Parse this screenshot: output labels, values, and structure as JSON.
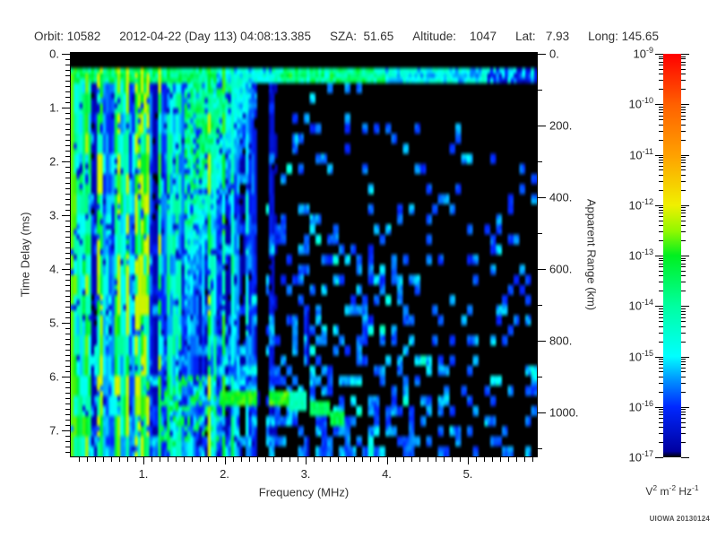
{
  "header": {
    "segments": [
      "Orbit: 10582",
      "2012-04-22 (Day 113) 04:08:13.385",
      "SZA:  51.65",
      "Altitude:    1047",
      "Lat:   7.93",
      "Long: 145.65"
    ],
    "fields": {
      "orbit": "10582",
      "date": "2012-04-22",
      "day": "113",
      "time": "04:08:13.385",
      "sza": "51.65",
      "altitude": "1047",
      "lat": "7.93",
      "long": "145.65"
    }
  },
  "chart_data": {
    "type": "heatmap",
    "subtype": "radar-sounder-ionogram-spectrogram",
    "title": "Orbit: 10582  2012-04-22 (Day 113) 04:08:13.385  SZA: 51.65  Altitude: 1047  Lat: 7.93  Long: 145.65",
    "x_axis": {
      "label": "Frequency (MHz)",
      "lim": [
        0.1,
        5.86
      ],
      "ticks": [
        {
          "v": 1,
          "label": "1."
        },
        {
          "v": 2,
          "label": "2."
        },
        {
          "v": 3,
          "label": "3."
        },
        {
          "v": 4,
          "label": "4."
        },
        {
          "v": 5,
          "label": "5."
        }
      ],
      "minor_step": 0.1
    },
    "y_axis": {
      "label": "Time Delay (ms)",
      "lim": [
        0,
        7.5
      ],
      "direction": "increasing downward",
      "ticks": [
        {
          "v": 0,
          "label": "0."
        },
        {
          "v": 1,
          "label": "1."
        },
        {
          "v": 2,
          "label": "2."
        },
        {
          "v": 3,
          "label": "3."
        },
        {
          "v": 4,
          "label": "4."
        },
        {
          "v": 5,
          "label": "5."
        },
        {
          "v": 6,
          "label": "6."
        },
        {
          "v": 7,
          "label": "7."
        }
      ],
      "minor_step": 0.1
    },
    "y2_axis": {
      "label": "Apparent Range (km)",
      "lim": [
        0,
        1125
      ],
      "ticks": [
        {
          "v": 0,
          "label": "0."
        },
        {
          "v": 200,
          "label": "200."
        },
        {
          "v": 400,
          "label": "400."
        },
        {
          "v": 600,
          "label": "600."
        },
        {
          "v": 800,
          "label": "800."
        },
        {
          "v": 1000,
          "label": "1000."
        }
      ],
      "minor_step": 100
    },
    "colorbar": {
      "scale": "log10",
      "range": [
        1e-17,
        1e-09
      ],
      "label_base": "10",
      "exponents": [
        -9,
        -10,
        -11,
        -12,
        -13,
        -14,
        -15,
        -16,
        -17
      ],
      "units_parts": [
        {
          "t": "V"
        },
        {
          "t": "2",
          "sup": true
        },
        {
          "t": " m"
        },
        {
          "t": "-2",
          "sup": true
        },
        {
          "t": " Hz"
        },
        {
          "t": "-1",
          "sup": true
        }
      ],
      "gradient_stops": [
        {
          "pos": 0.0,
          "color": "#FF0000"
        },
        {
          "pos": 0.09,
          "color": "#FF4400"
        },
        {
          "pos": 0.125,
          "color": "#FF6000"
        },
        {
          "pos": 0.25,
          "color": "#FFA000"
        },
        {
          "pos": 0.375,
          "color": "#F0F000"
        },
        {
          "pos": 0.44,
          "color": "#90F800"
        },
        {
          "pos": 0.5,
          "color": "#00F020"
        },
        {
          "pos": 0.625,
          "color": "#00FFA0"
        },
        {
          "pos": 0.75,
          "color": "#00FFFF"
        },
        {
          "pos": 0.81,
          "color": "#0090FF"
        },
        {
          "pos": 0.875,
          "color": "#0028FF"
        },
        {
          "pos": 0.985,
          "color": "#0000A0"
        },
        {
          "pos": 1.0,
          "color": "#000000"
        }
      ]
    },
    "features": [
      {
        "name": "transmitter blanking band",
        "freq_MHz": [
          0.1,
          5.86
        ],
        "time_delay_ms": [
          0,
          0.22
        ],
        "signal": "no data (black)"
      },
      {
        "name": "near-range return band",
        "freq_MHz": [
          0.1,
          5.86
        ],
        "time_delay_ms": [
          0.25,
          0.5
        ],
        "apparent_range_km": [
          40,
          75
        ],
        "spectral_density": "1e-15 to 5e-13",
        "note": "blue band with cyan/green patches, brightest 2.6-4 MHz"
      },
      {
        "name": "plasma-oscillation striations",
        "freq_MHz": [
          0.1,
          1.8
        ],
        "time_delay_ms": [
          0.22,
          7.5
        ],
        "spectral_density": "1e-16 to 1e-13",
        "note": "dense vertical green/cyan/blue stripes, fading out by ~2.7 MHz"
      },
      {
        "name": "green wash near top of striated region",
        "freq_MHz": [
          1.5,
          2.55
        ],
        "time_delay_ms": [
          0.25,
          4
        ],
        "note": "diagonal boundary receding from 2.55 MHz at top to ~1.8 MHz by 4 ms"
      },
      {
        "name": "diffuse background speckle",
        "freq_MHz": [
          1.8,
          5.86
        ],
        "time_delay_ms": [
          1,
          7.5
        ],
        "spectral_density": "~1e-16",
        "note": "blue blobs on black, density increases with time delay"
      },
      {
        "name": "quiet vertical gap",
        "freq_MHz": [
          2.42,
          2.52
        ],
        "time_delay_ms": [
          0.22,
          7.5
        ],
        "signal": "near background (black column)"
      },
      {
        "name": "echo trace",
        "freq_MHz": [
          1.2,
          3.5
        ],
        "time_delay_ms": [
          6.3,
          6.9
        ],
        "apparent_range_km": [
          945,
          1035
        ],
        "spectral_density": "~1e-13",
        "note": "bright green horizontal trace; blobby 1.2-1.9 MHz, solid 1.9-2.8 MHz at ~6.4 ms, stepping down to ~6.8 ms by 3.4 MHz"
      }
    ],
    "credit": "UIOWA 20130124"
  }
}
